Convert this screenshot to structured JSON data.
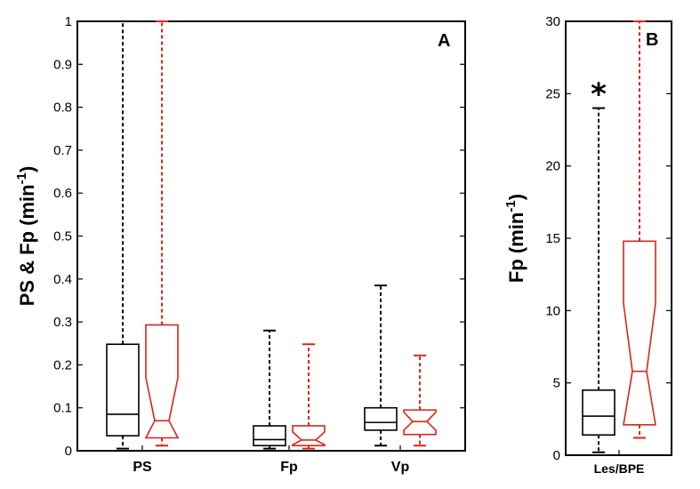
{
  "colors": {
    "group1": "#000000",
    "group2": "#d9261c"
  },
  "chart_data": [
    {
      "type": "boxplot",
      "panel_label": "A",
      "ylabel_main": "PS & Fp (min",
      "ylabel_sup": "-1",
      "ylabel_close": ")",
      "ylim": [
        0,
        1
      ],
      "yticks": [
        0,
        0.1,
        0.2,
        0.3,
        0.4,
        0.5,
        0.6,
        0.7,
        0.8,
        0.9,
        1
      ],
      "ytick_labels": [
        "0",
        "0.1",
        "0.2",
        "0.3",
        "0.4",
        "0.5",
        "0.6",
        "0.7",
        "0.8",
        "0.9",
        "1"
      ],
      "categories": [
        "PS",
        "Fp",
        "Vp"
      ],
      "series": [
        {
          "name": "group1",
          "color": "#000000",
          "notched": false,
          "boxes": [
            {
              "min": 0.005,
              "q1": 0.035,
              "median": 0.085,
              "q3": 0.248,
              "max": 1.0
            },
            {
              "min": 0.005,
              "q1": 0.012,
              "median": 0.026,
              "q3": 0.058,
              "max": 0.28
            },
            {
              "min": 0.012,
              "q1": 0.048,
              "median": 0.066,
              "q3": 0.1,
              "max": 0.385
            }
          ]
        },
        {
          "name": "group2",
          "color": "#d9261c",
          "notched": true,
          "boxes": [
            {
              "min": 0.012,
              "q1": 0.03,
              "median": 0.07,
              "q3": 0.293,
              "max": 1.0,
              "notch_lo": 0.03,
              "notch_hi": 0.17
            },
            {
              "min": 0.005,
              "q1": 0.012,
              "median": 0.025,
              "q3": 0.058,
              "max": 0.248,
              "notch_lo": 0.014,
              "notch_hi": 0.044
            },
            {
              "min": 0.012,
              "q1": 0.038,
              "median": 0.068,
              "q3": 0.095,
              "max": 0.222,
              "notch_lo": 0.048,
              "notch_hi": 0.09
            }
          ]
        }
      ]
    },
    {
      "type": "boxplot",
      "panel_label": "B",
      "ylabel_main": "Fp (min",
      "ylabel_sup": "-1",
      "ylabel_close": ")",
      "ylim": [
        0,
        30
      ],
      "yticks": [
        0,
        5,
        10,
        15,
        20,
        25,
        30
      ],
      "ytick_labels": [
        "0",
        "5",
        "10",
        "15",
        "20",
        "25",
        "30"
      ],
      "categories": [
        "Les/BPE"
      ],
      "annotation": "*",
      "series": [
        {
          "name": "group1",
          "color": "#000000",
          "notched": false,
          "boxes": [
            {
              "min": 0.2,
              "q1": 1.4,
              "median": 2.7,
              "q3": 4.5,
              "max": 24.0
            }
          ]
        },
        {
          "name": "group2",
          "color": "#d9261c",
          "notched": true,
          "boxes": [
            {
              "min": 1.2,
              "q1": 2.1,
              "median": 5.8,
              "q3": 14.8,
              "max": 30.0,
              "notch_lo": 2.1,
              "notch_hi": 10.5
            }
          ]
        }
      ]
    }
  ]
}
